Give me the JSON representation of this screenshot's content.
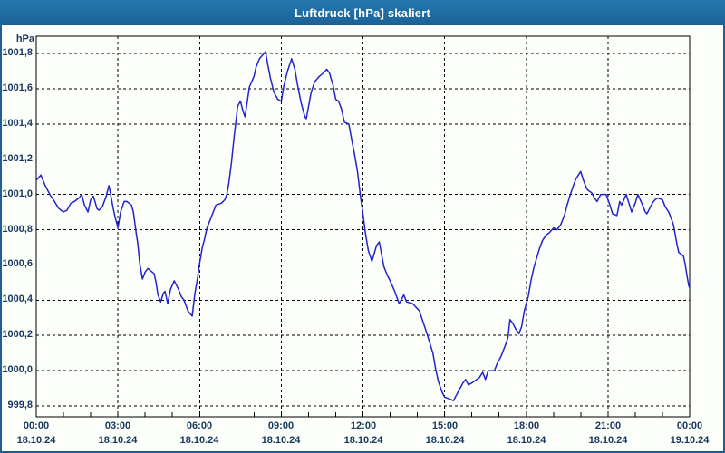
{
  "window": {
    "title": "Luftdruck [hPa] skaliert"
  },
  "colors": {
    "titlebar_bg": "#1f6da3",
    "titlebar_top": "#2578ad",
    "titlebar_bottom": "#1b6196",
    "frame_border": "#1d5f9a",
    "axis_text": "#17375e",
    "series_line": "#2323cc",
    "grid": "#000000",
    "plot_border": "#000000",
    "chart_background": "#fcfefa",
    "title_text": "#ffffff"
  },
  "chart_data": {
    "type": "line",
    "title": "Luftdruck [hPa] skaliert",
    "ylabel": "hPa",
    "xlabel": "",
    "grid": "dashed",
    "legend_position": "none",
    "ylim": [
      999.8,
      1001.8
    ],
    "xlim_hours": [
      0,
      24
    ],
    "minor_tick_every_hours": 1,
    "yticks": [
      {
        "value": 1001.8,
        "label": "1001,8"
      },
      {
        "value": 1001.6,
        "label": "1001,6"
      },
      {
        "value": 1001.4,
        "label": "1001,4"
      },
      {
        "value": 1001.2,
        "label": "1001,2"
      },
      {
        "value": 1001.0,
        "label": "1001,0"
      },
      {
        "value": 1000.8,
        "label": "1000,8"
      },
      {
        "value": 1000.6,
        "label": "1000,6"
      },
      {
        "value": 1000.4,
        "label": "1000,4"
      },
      {
        "value": 1000.2,
        "label": "1000,2"
      },
      {
        "value": 1000.0,
        "label": "1000,0"
      },
      {
        "value": 999.8,
        "label": "999,8"
      }
    ],
    "xticks": [
      {
        "hour": 0,
        "time": "00:00",
        "date": "18.10.24"
      },
      {
        "hour": 3,
        "time": "03:00",
        "date": "18.10.24"
      },
      {
        "hour": 6,
        "time": "06:00",
        "date": "18.10.24"
      },
      {
        "hour": 9,
        "time": "09:00",
        "date": "18.10.24"
      },
      {
        "hour": 12,
        "time": "12:00",
        "date": "18.10.24"
      },
      {
        "hour": 15,
        "time": "15:00",
        "date": "18.10.24"
      },
      {
        "hour": 18,
        "time": "18:00",
        "date": "18.10.24"
      },
      {
        "hour": 21,
        "time": "21:00",
        "date": "18.10.24"
      },
      {
        "hour": 24,
        "time": "00:00",
        "date": "19.10.24"
      }
    ],
    "series": [
      {
        "name": "Luftdruck",
        "color": "#2323cc",
        "points": [
          [
            0,
            1001.08
          ],
          [
            0.17,
            1001.11
          ],
          [
            0.33,
            1001.05
          ],
          [
            0.5,
            1001.0
          ],
          [
            0.67,
            1000.96
          ],
          [
            0.83,
            1000.92
          ],
          [
            1.0,
            1000.9
          ],
          [
            1.13,
            1000.91
          ],
          [
            1.27,
            1000.95
          ],
          [
            1.4,
            1000.96
          ],
          [
            1.57,
            1000.98
          ],
          [
            1.67,
            1001.0
          ],
          [
            1.77,
            1000.94
          ],
          [
            1.9,
            1000.9
          ],
          [
            2.0,
            1000.97
          ],
          [
            2.1,
            1000.99
          ],
          [
            2.23,
            1000.92
          ],
          [
            2.3,
            1000.91
          ],
          [
            2.43,
            1000.93
          ],
          [
            2.57,
            1000.99
          ],
          [
            2.67,
            1001.05
          ],
          [
            2.77,
            1000.97
          ],
          [
            2.83,
            1000.92
          ],
          [
            2.9,
            1000.87
          ],
          [
            2.97,
            1000.83
          ],
          [
            3.0,
            1000.81
          ],
          [
            3.1,
            1000.9
          ],
          [
            3.23,
            1000.96
          ],
          [
            3.33,
            1000.96
          ],
          [
            3.5,
            1000.94
          ],
          [
            3.57,
            1000.9
          ],
          [
            3.67,
            1000.78
          ],
          [
            3.73,
            1000.72
          ],
          [
            3.8,
            1000.61
          ],
          [
            3.9,
            1000.52
          ],
          [
            4.0,
            1000.56
          ],
          [
            4.1,
            1000.58
          ],
          [
            4.33,
            1000.55
          ],
          [
            4.4,
            1000.5
          ],
          [
            4.47,
            1000.43
          ],
          [
            4.57,
            1000.39
          ],
          [
            4.67,
            1000.44
          ],
          [
            4.73,
            1000.45
          ],
          [
            4.83,
            1000.38
          ],
          [
            4.93,
            1000.46
          ],
          [
            5.07,
            1000.51
          ],
          [
            5.23,
            1000.46
          ],
          [
            5.33,
            1000.42
          ],
          [
            5.43,
            1000.4
          ],
          [
            5.57,
            1000.34
          ],
          [
            5.67,
            1000.32
          ],
          [
            5.73,
            1000.31
          ],
          [
            5.83,
            1000.44
          ],
          [
            5.9,
            1000.5
          ],
          [
            6.0,
            1000.61
          ],
          [
            6.1,
            1000.7
          ],
          [
            6.17,
            1000.74
          ],
          [
            6.27,
            1000.81
          ],
          [
            6.4,
            1000.86
          ],
          [
            6.5,
            1000.9
          ],
          [
            6.6,
            1000.94
          ],
          [
            6.8,
            1000.95
          ],
          [
            6.93,
            1000.97
          ],
          [
            7.0,
            1001.0
          ],
          [
            7.07,
            1001.06
          ],
          [
            7.17,
            1001.18
          ],
          [
            7.27,
            1001.33
          ],
          [
            7.4,
            1001.5
          ],
          [
            7.5,
            1001.53
          ],
          [
            7.6,
            1001.47
          ],
          [
            7.67,
            1001.44
          ],
          [
            7.83,
            1001.61
          ],
          [
            8.0,
            1001.67
          ],
          [
            8.07,
            1001.72
          ],
          [
            8.2,
            1001.77
          ],
          [
            8.42,
            1001.81
          ],
          [
            8.5,
            1001.74
          ],
          [
            8.6,
            1001.66
          ],
          [
            8.73,
            1001.58
          ],
          [
            8.87,
            1001.54
          ],
          [
            9.0,
            1001.53
          ],
          [
            9.1,
            1001.62
          ],
          [
            9.23,
            1001.7
          ],
          [
            9.38,
            1001.77
          ],
          [
            9.5,
            1001.71
          ],
          [
            9.6,
            1001.62
          ],
          [
            9.73,
            1001.52
          ],
          [
            9.87,
            1001.44
          ],
          [
            9.92,
            1001.43
          ],
          [
            10.1,
            1001.58
          ],
          [
            10.23,
            1001.64
          ],
          [
            10.4,
            1001.67
          ],
          [
            10.55,
            1001.69
          ],
          [
            10.67,
            1001.71
          ],
          [
            10.77,
            1001.69
          ],
          [
            10.9,
            1001.62
          ],
          [
            11.0,
            1001.54
          ],
          [
            11.1,
            1001.53
          ],
          [
            11.2,
            1001.49
          ],
          [
            11.32,
            1001.41
          ],
          [
            11.48,
            1001.4
          ],
          [
            11.6,
            1001.3
          ],
          [
            11.7,
            1001.22
          ],
          [
            11.8,
            1001.13
          ],
          [
            11.9,
            1001.0
          ],
          [
            12.0,
            1000.89
          ],
          [
            12.1,
            1000.77
          ],
          [
            12.2,
            1000.68
          ],
          [
            12.33,
            1000.62
          ],
          [
            12.5,
            1000.71
          ],
          [
            12.6,
            1000.73
          ],
          [
            12.77,
            1000.59
          ],
          [
            12.9,
            1000.54
          ],
          [
            13.0,
            1000.51
          ],
          [
            13.17,
            1000.45
          ],
          [
            13.33,
            1000.38
          ],
          [
            13.5,
            1000.43
          ],
          [
            13.6,
            1000.39
          ],
          [
            13.83,
            1000.38
          ],
          [
            14.07,
            1000.34
          ],
          [
            14.33,
            1000.22
          ],
          [
            14.43,
            1000.17
          ],
          [
            14.57,
            1000.1
          ],
          [
            14.67,
            1000.01
          ],
          [
            14.77,
            999.94
          ],
          [
            14.9,
            999.88
          ],
          [
            15.0,
            999.85
          ],
          [
            15.17,
            999.84
          ],
          [
            15.33,
            999.83
          ],
          [
            15.43,
            999.86
          ],
          [
            15.57,
            999.9
          ],
          [
            15.67,
            999.93
          ],
          [
            15.77,
            999.95
          ],
          [
            15.87,
            999.92
          ],
          [
            16.0,
            999.93
          ],
          [
            16.27,
            999.96
          ],
          [
            16.4,
            999.99
          ],
          [
            16.5,
            999.95
          ],
          [
            16.6,
            1000.0
          ],
          [
            16.83,
            1000.0
          ],
          [
            16.93,
            1000.04
          ],
          [
            17.07,
            1000.08
          ],
          [
            17.17,
            1000.12
          ],
          [
            17.27,
            1000.16
          ],
          [
            17.33,
            1000.19
          ],
          [
            17.4,
            1000.29
          ],
          [
            17.5,
            1000.27
          ],
          [
            17.6,
            1000.24
          ],
          [
            17.73,
            1000.21
          ],
          [
            17.83,
            1000.25
          ],
          [
            17.93,
            1000.34
          ],
          [
            18.07,
            1000.42
          ],
          [
            18.17,
            1000.51
          ],
          [
            18.27,
            1000.58
          ],
          [
            18.4,
            1000.65
          ],
          [
            18.5,
            1000.7
          ],
          [
            18.6,
            1000.74
          ],
          [
            18.73,
            1000.77
          ],
          [
            18.83,
            1000.78
          ],
          [
            19.0,
            1000.81
          ],
          [
            19.13,
            1000.8
          ],
          [
            19.27,
            1000.83
          ],
          [
            19.4,
            1000.88
          ],
          [
            19.5,
            1000.94
          ],
          [
            19.6,
            1000.99
          ],
          [
            19.73,
            1001.05
          ],
          [
            19.83,
            1001.09
          ],
          [
            20.0,
            1001.13
          ],
          [
            20.1,
            1001.08
          ],
          [
            20.23,
            1001.03
          ],
          [
            20.3,
            1001.02
          ],
          [
            20.4,
            1001.01
          ],
          [
            20.5,
            1000.98
          ],
          [
            20.6,
            1000.96
          ],
          [
            20.73,
            1001.0
          ],
          [
            20.93,
            1001.0
          ],
          [
            21.07,
            1000.94
          ],
          [
            21.17,
            1000.89
          ],
          [
            21.33,
            1000.88
          ],
          [
            21.43,
            1000.96
          ],
          [
            21.5,
            1000.94
          ],
          [
            21.67,
            1001.0
          ],
          [
            21.77,
            1000.95
          ],
          [
            21.87,
            1000.9
          ],
          [
            22.0,
            1000.95
          ],
          [
            22.1,
            1001.0
          ],
          [
            22.27,
            1000.94
          ],
          [
            22.37,
            1000.9
          ],
          [
            22.43,
            1000.89
          ],
          [
            22.53,
            1000.92
          ],
          [
            22.63,
            1000.95
          ],
          [
            22.73,
            1000.97
          ],
          [
            22.83,
            1000.98
          ],
          [
            23.0,
            1000.97
          ],
          [
            23.1,
            1000.93
          ],
          [
            23.23,
            1000.9
          ],
          [
            23.33,
            1000.86
          ],
          [
            23.4,
            1000.83
          ],
          [
            23.47,
            1000.77
          ],
          [
            23.53,
            1000.72
          ],
          [
            23.6,
            1000.67
          ],
          [
            23.7,
            1000.66
          ],
          [
            23.77,
            1000.65
          ],
          [
            23.83,
            1000.61
          ],
          [
            23.9,
            1000.54
          ],
          [
            23.97,
            1000.48
          ],
          [
            24.0,
            1000.47
          ]
        ]
      }
    ]
  }
}
